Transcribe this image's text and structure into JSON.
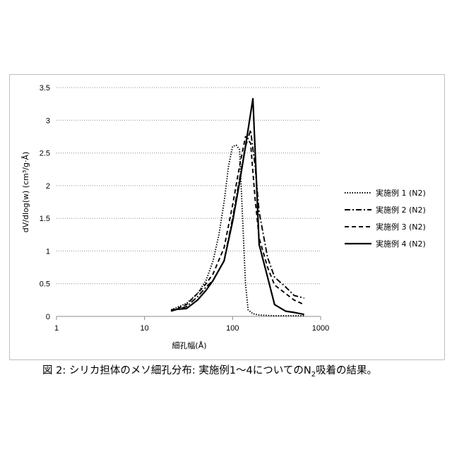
{
  "chart_data": {
    "type": "line",
    "xscale": "log",
    "xlim": [
      1,
      1000
    ],
    "ylim": [
      0,
      3.5
    ],
    "xticks": [
      1,
      10,
      100,
      1000
    ],
    "xtick_labels": [
      "1",
      "10",
      "100",
      "1000"
    ],
    "yticks": [
      0,
      0.5,
      1,
      1.5,
      2,
      2.5,
      3,
      3.5
    ],
    "ytick_labels": [
      "0",
      "0.5",
      "1",
      "1.5",
      "2",
      "2.5",
      "3",
      "3.5"
    ],
    "xlabel": "細孔幅(Å)",
    "ylabel": "dV/dlog(w) (cm³/g·Å)",
    "grid": "horizontal dotted",
    "legend_position": "right",
    "series": [
      {
        "name": "実施例 1 (N2)",
        "style": "dotted",
        "x": [
          20,
          30,
          40,
          50,
          60,
          70,
          80,
          90,
          100,
          110,
          120,
          130,
          140,
          150,
          170,
          200,
          300,
          400,
          500,
          600,
          650
        ],
        "y": [
          0.1,
          0.2,
          0.35,
          0.55,
          0.85,
          1.25,
          1.75,
          2.3,
          2.6,
          2.62,
          2.55,
          1.5,
          0.5,
          0.1,
          0.04,
          0.02,
          0.01,
          0.01,
          0.01,
          0.01,
          0.01
        ]
      },
      {
        "name": "実施例 2 (N2)",
        "style": "dash-dot",
        "x": [
          20,
          30,
          40,
          50,
          60,
          80,
          100,
          120,
          140,
          160,
          180,
          200,
          250,
          300,
          400,
          500,
          650
        ],
        "y": [
          0.08,
          0.15,
          0.3,
          0.45,
          0.55,
          0.85,
          1.5,
          2.1,
          2.6,
          2.85,
          2.3,
          1.6,
          0.9,
          0.6,
          0.45,
          0.32,
          0.28
        ]
      },
      {
        "name": "実施例 3 (N2)",
        "style": "dashed",
        "x": [
          20,
          30,
          40,
          50,
          60,
          80,
          100,
          120,
          140,
          160,
          180,
          200,
          250,
          300,
          400,
          500,
          650
        ],
        "y": [
          0.08,
          0.18,
          0.35,
          0.5,
          0.65,
          1.05,
          1.7,
          2.3,
          2.75,
          2.65,
          1.8,
          1.2,
          0.75,
          0.48,
          0.35,
          0.25,
          0.18
        ]
      },
      {
        "name": "実施例 4 (N2)",
        "style": "solid",
        "x": [
          20,
          30,
          40,
          50,
          60,
          80,
          100,
          120,
          140,
          160,
          170,
          200,
          250,
          300,
          400,
          500,
          650
        ],
        "y": [
          0.1,
          0.12,
          0.25,
          0.4,
          0.55,
          0.85,
          1.45,
          2.05,
          2.6,
          3.1,
          3.33,
          1.1,
          0.6,
          0.18,
          0.08,
          0.06,
          0.03
        ]
      }
    ]
  },
  "caption": {
    "prefix": "図 2: シリカ担体のメソ細孔分布: 実施例1～4についてのN",
    "subscript": "2",
    "suffix": "吸着の結果。"
  }
}
